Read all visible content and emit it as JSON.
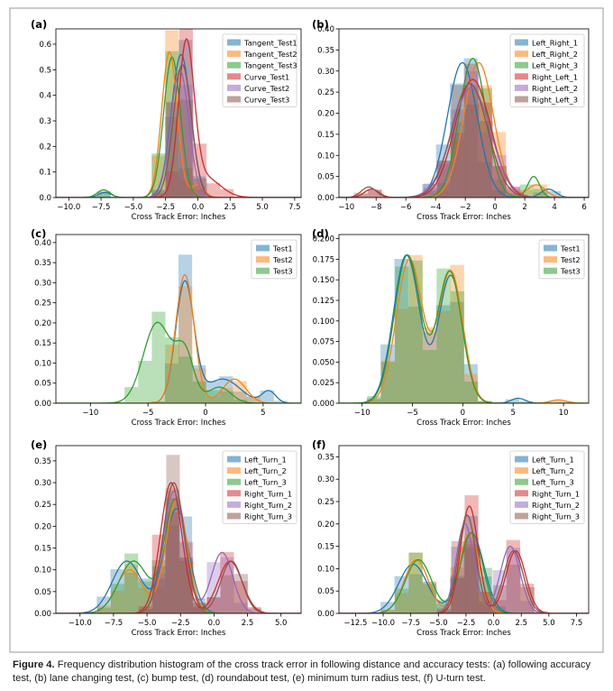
{
  "caption": {
    "label": "Figure 4.",
    "text": "Frequency distribution histogram of the cross track error in following distance and accuracy tests: (a) following accuracy test, (b) lane changing test, (c) bump test, (d) roundabout test, (e) minimum turn radius test, (f) U-turn test."
  },
  "chart_data": [
    {
      "panel": "(a)",
      "type": "histogram",
      "xlabel": "Cross Track Error: Inches",
      "ylabel": "",
      "xlim": [
        -11,
        8
      ],
      "ylim": [
        0,
        0.66
      ],
      "xticks": [
        -10.0,
        -7.5,
        -5.0,
        -2.5,
        0.0,
        2.5,
        5.0,
        7.5
      ],
      "xtick_labels": [
        "−10.0",
        "−7.5",
        "−5.0",
        "−2.5",
        "0.0",
        "2.5",
        "5.0",
        "7.5"
      ],
      "yticks": [
        0.0,
        0.1,
        0.2,
        0.3,
        0.4,
        0.5,
        0.6
      ],
      "ytick_labels": [
        "0.0",
        "0.1",
        "0.2",
        "0.3",
        "0.4",
        "0.5",
        "0.6"
      ],
      "legend_position": "top-right",
      "series": [
        {
          "name": "Tangent_Test1",
          "color": "#1f77b4",
          "components": [
            [
              -1.3,
              0.75,
              0.56
            ],
            [
              -7.2,
              0.5,
              0.02
            ]
          ]
        },
        {
          "name": "Tangent_Test2",
          "color": "#ff7f0e",
          "components": [
            [
              -2.2,
              0.6,
              0.57
            ],
            [
              0.0,
              0.5,
              0.05
            ]
          ]
        },
        {
          "name": "Tangent_Test3",
          "color": "#2ca02c",
          "components": [
            [
              -2.0,
              0.65,
              0.55
            ],
            [
              -7.3,
              0.5,
              0.03
            ]
          ]
        },
        {
          "name": "Curve_Test1",
          "color": "#d62728",
          "components": [
            [
              -0.9,
              0.6,
              0.58
            ],
            [
              0.5,
              1.2,
              0.08
            ]
          ]
        },
        {
          "name": "Curve_Test2",
          "color": "#9467bd",
          "components": [
            [
              -1.4,
              0.7,
              0.5
            ]
          ]
        },
        {
          "name": "Curve_Test3",
          "color": "#8c564b",
          "components": [
            [
              -1.2,
              0.7,
              0.52
            ]
          ]
        }
      ]
    },
    {
      "panel": "(b)",
      "type": "histogram",
      "xlabel": "Cross Track Error: Inches",
      "ylabel": "",
      "xlim": [
        -10.5,
        6.3
      ],
      "ylim": [
        0,
        0.4
      ],
      "xticks": [
        -10,
        -8,
        -6,
        -4,
        -2,
        0,
        2,
        4,
        6
      ],
      "xtick_labels": [
        "−10",
        "−8",
        "−6",
        "−4",
        "−2",
        "0",
        "2",
        "4",
        "6"
      ],
      "yticks": [
        0.0,
        0.05,
        0.1,
        0.15,
        0.2,
        0.25,
        0.3,
        0.35,
        0.4
      ],
      "ytick_labels": [
        "0.00",
        "0.05",
        "0.10",
        "0.15",
        "0.20",
        "0.25",
        "0.30",
        "0.35",
        "0.40"
      ],
      "legend_position": "top-right",
      "series": [
        {
          "name": "Left_Right_1",
          "color": "#1f77b4",
          "components": [
            [
              -2.2,
              1.0,
              0.32
            ],
            [
              3.6,
              0.5,
              0.02
            ]
          ]
        },
        {
          "name": "Left_Right_2",
          "color": "#ff7f0e",
          "components": [
            [
              -1.1,
              1.0,
              0.32
            ],
            [
              2.8,
              0.6,
              0.03
            ]
          ]
        },
        {
          "name": "Left_Right_3",
          "color": "#2ca02c",
          "components": [
            [
              -1.5,
              0.9,
              0.33
            ],
            [
              2.6,
              0.4,
              0.05
            ]
          ]
        },
        {
          "name": "Right_Left_1",
          "color": "#d62728",
          "components": [
            [
              -1.5,
              1.2,
              0.28
            ],
            [
              -8.3,
              0.5,
              0.02
            ]
          ]
        },
        {
          "name": "Right_Left_2",
          "color": "#9467bd",
          "components": [
            [
              -1.6,
              1.3,
              0.26
            ]
          ]
        },
        {
          "name": "Right_Left_3",
          "color": "#8c564b",
          "components": [
            [
              -1.7,
              1.2,
              0.27
            ],
            [
              -8.5,
              0.5,
              0.025
            ]
          ]
        }
      ]
    },
    {
      "panel": "(c)",
      "type": "histogram",
      "xlabel": "Cross Track Error: Inches",
      "ylabel": "",
      "xlim": [
        -13,
        8.3
      ],
      "ylim": [
        0,
        0.42
      ],
      "xticks": [
        -10,
        -5,
        0,
        5
      ],
      "xtick_labels": [
        "−10",
        "−5",
        "0",
        "5"
      ],
      "yticks": [
        0.0,
        0.05,
        0.1,
        0.15,
        0.2,
        0.25,
        0.3,
        0.35,
        0.4
      ],
      "ytick_labels": [
        "0.00",
        "0.05",
        "0.10",
        "0.15",
        "0.20",
        "0.25",
        "0.30",
        "0.35",
        "0.40"
      ],
      "legend_position": "top-right",
      "series": [
        {
          "name": "Test1",
          "color": "#1f77b4",
          "components": [
            [
              -1.8,
              0.8,
              0.3
            ],
            [
              1.5,
              1.5,
              0.06
            ],
            [
              5.5,
              0.6,
              0.03
            ]
          ]
        },
        {
          "name": "Test2",
          "color": "#ff7f0e",
          "components": [
            [
              -1.8,
              0.8,
              0.32
            ],
            [
              2.5,
              1.0,
              0.06
            ]
          ]
        },
        {
          "name": "Test3",
          "color": "#2ca02c",
          "components": [
            [
              -4.2,
              1.2,
              0.2
            ],
            [
              -1.8,
              0.8,
              0.12
            ],
            [
              1.2,
              1.0,
              0.04
            ]
          ]
        }
      ]
    },
    {
      "panel": "(d)",
      "type": "histogram",
      "xlabel": "Cross Track Error: Inches",
      "ylabel": "",
      "xlim": [
        -12.3,
        12.5
      ],
      "ylim": [
        0,
        0.205
      ],
      "xticks": [
        -10,
        -5,
        0,
        5,
        10
      ],
      "xtick_labels": [
        "−10",
        "−5",
        "0",
        "5",
        "10"
      ],
      "yticks": [
        0.0,
        0.025,
        0.05,
        0.075,
        0.1,
        0.125,
        0.15,
        0.175,
        0.2
      ],
      "ytick_labels": [
        "0.000",
        "0.025",
        "0.050",
        "0.075",
        "0.100",
        "0.125",
        "0.150",
        "0.175",
        "0.200"
      ],
      "legend_position": "top-right",
      "series": [
        {
          "name": "Test1",
          "color": "#1f77b4",
          "components": [
            [
              -5.6,
              1.3,
              0.18
            ],
            [
              -1.2,
              1.2,
              0.155
            ],
            [
              5.5,
              0.7,
              0.006
            ]
          ]
        },
        {
          "name": "Test2",
          "color": "#ff7f0e",
          "components": [
            [
              -5.3,
              1.3,
              0.175
            ],
            [
              -1.2,
              1.2,
              0.16
            ],
            [
              9.5,
              0.8,
              0.004
            ]
          ]
        },
        {
          "name": "Test3",
          "color": "#2ca02c",
          "components": [
            [
              -5.5,
              1.3,
              0.18
            ],
            [
              -1.3,
              1.2,
              0.16
            ]
          ]
        }
      ]
    },
    {
      "panel": "(e)",
      "type": "histogram",
      "xlabel": "Cross Track Error: Inches",
      "ylabel": "",
      "xlim": [
        -11.8,
        6.5
      ],
      "ylim": [
        0,
        0.385
      ],
      "xticks": [
        -10.0,
        -7.5,
        -5.0,
        -2.5,
        0.0,
        2.5,
        5.0
      ],
      "xtick_labels": [
        "−10.0",
        "−7.5",
        "−5.0",
        "−2.5",
        "0.0",
        "2.5",
        "5.0"
      ],
      "yticks": [
        0.0,
        0.05,
        0.1,
        0.15,
        0.2,
        0.25,
        0.3,
        0.35
      ],
      "ytick_labels": [
        "0.00",
        "0.05",
        "0.10",
        "0.15",
        "0.20",
        "0.25",
        "0.30",
        "0.35"
      ],
      "legend_position": "top-right",
      "series": [
        {
          "name": "Left_Turn_1",
          "color": "#1f77b4",
          "components": [
            [
              -6.5,
              1.1,
              0.12
            ],
            [
              -2.8,
              0.9,
              0.24
            ]
          ]
        },
        {
          "name": "Left_Turn_2",
          "color": "#ff7f0e",
          "components": [
            [
              -6.3,
              1.0,
              0.1
            ],
            [
              -2.8,
              0.8,
              0.26
            ]
          ]
        },
        {
          "name": "Left_Turn_3",
          "color": "#2ca02c",
          "components": [
            [
              -6.0,
              1.1,
              0.12
            ],
            [
              -2.9,
              0.8,
              0.26
            ]
          ]
        },
        {
          "name": "Right_Turn_1",
          "color": "#d62728",
          "components": [
            [
              -3.2,
              0.8,
              0.3
            ],
            [
              1.2,
              0.9,
              0.12
            ]
          ]
        },
        {
          "name": "Right_Turn_2",
          "color": "#9467bd",
          "components": [
            [
              -3.0,
              0.8,
              0.28
            ],
            [
              0.6,
              0.8,
              0.14
            ]
          ]
        },
        {
          "name": "Right_Turn_3",
          "color": "#8c564b",
          "components": [
            [
              -3.0,
              0.8,
              0.3
            ],
            [
              1.3,
              0.8,
              0.12
            ]
          ]
        }
      ]
    },
    {
      "panel": "(f)",
      "type": "histogram",
      "xlabel": "Cross Track Error: Inches",
      "ylabel": "",
      "xlim": [
        -14,
        8.6
      ],
      "ylim": [
        0,
        0.375
      ],
      "xticks": [
        -12.5,
        -10.0,
        -7.5,
        -5.0,
        -2.5,
        0.0,
        2.5,
        5.0,
        7.5
      ],
      "xtick_labels": [
        "−12.5",
        "−10.0",
        "−7.5",
        "−5.0",
        "−2.5",
        "0.0",
        "2.5",
        "5.0",
        "7.5"
      ],
      "yticks": [
        0.0,
        0.05,
        0.1,
        0.15,
        0.2,
        0.25,
        0.3,
        0.35
      ],
      "ytick_labels": [
        "0.00",
        "0.05",
        "0.10",
        "0.15",
        "0.20",
        "0.25",
        "0.30",
        "0.35"
      ],
      "legend_position": "top-right",
      "series": [
        {
          "name": "Left_Turn_1",
          "color": "#1f77b4",
          "components": [
            [
              -7.3,
              1.3,
              0.11
            ],
            [
              -2.0,
              1.1,
              0.18
            ]
          ]
        },
        {
          "name": "Left_Turn_2",
          "color": "#ff7f0e",
          "components": [
            [
              -7.0,
              1.1,
              0.12
            ],
            [
              -2.2,
              0.9,
              0.18
            ]
          ]
        },
        {
          "name": "Left_Turn_3",
          "color": "#2ca02c",
          "components": [
            [
              -6.8,
              1.2,
              0.12
            ],
            [
              -2.0,
              1.0,
              0.18
            ]
          ]
        },
        {
          "name": "Right_Turn_1",
          "color": "#d62728",
          "components": [
            [
              -2.2,
              0.8,
              0.24
            ],
            [
              2.0,
              0.9,
              0.14
            ]
          ]
        },
        {
          "name": "Right_Turn_2",
          "color": "#9467bd",
          "components": [
            [
              -2.6,
              0.8,
              0.2
            ],
            [
              1.5,
              0.9,
              0.15
            ]
          ]
        },
        {
          "name": "Right_Turn_3",
          "color": "#8c564b",
          "components": [
            [
              -2.4,
              0.8,
              0.22
            ],
            [
              1.8,
              0.9,
              0.14
            ]
          ]
        }
      ]
    }
  ]
}
